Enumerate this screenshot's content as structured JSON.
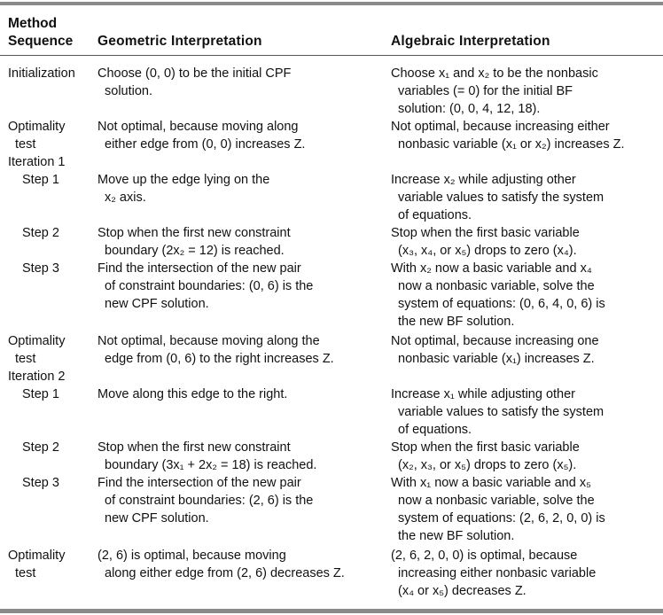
{
  "headers": {
    "method_line1": "Method",
    "method_line2": "Sequence",
    "geometric": "Geometric Interpretation",
    "algebraic": "Algebraic Interpretation"
  },
  "rows": [
    {
      "method": [
        "Initialization"
      ],
      "geometric": [
        "Choose (0, 0) to be the initial CPF",
        "solution."
      ],
      "algebraic": [
        "Choose x₁ and x₂ to be the nonbasic",
        "variables (= 0) for the initial BF",
        "solution: (0, 0, 4, 12, 18)."
      ]
    },
    {
      "method": [
        "Optimality",
        "test"
      ],
      "geometric": [
        "Not optimal, because moving along",
        "either edge from (0, 0) increases Z."
      ],
      "algebraic": [
        "Not optimal, because increasing either",
        "nonbasic variable (x₁ or x₂) increases Z."
      ]
    },
    {
      "method": [
        "Iteration 1"
      ],
      "geometric": [],
      "algebraic": []
    },
    {
      "method": [
        "Step 1"
      ],
      "geometric": [
        "Move up the edge lying on the",
        "x₂ axis."
      ],
      "algebraic": [
        "Increase x₂ while adjusting other",
        "variable values to satisfy the system",
        "of equations."
      ]
    },
    {
      "method": [
        "Step 2"
      ],
      "geometric": [
        "Stop when the first new constraint",
        "boundary (2x₂ = 12) is reached."
      ],
      "algebraic": [
        "Stop when the first basic variable",
        "(x₃, x₄, or x₅) drops to zero (x₄)."
      ]
    },
    {
      "method": [
        "Step 3"
      ],
      "geometric": [
        "Find the intersection of the new pair",
        "of constraint boundaries: (0, 6) is the",
        "new CPF solution."
      ],
      "algebraic": [
        "With x₂ now a basic variable and x₄",
        "now a nonbasic variable, solve the",
        "system of equations: (0, 6, 4, 0, 6) is",
        "the new BF solution."
      ]
    },
    {
      "method": [
        "Optimality",
        "test"
      ],
      "geometric": [
        "Not optimal, because moving along the",
        "edge from (0, 6) to the right increases Z."
      ],
      "algebraic": [
        "Not optimal, because increasing one",
        "nonbasic variable (x₁) increases Z."
      ]
    },
    {
      "method": [
        "Iteration 2"
      ],
      "geometric": [],
      "algebraic": []
    },
    {
      "method": [
        "Step 1"
      ],
      "geometric": [
        "Move along this edge to the right."
      ],
      "algebraic": [
        "Increase x₁ while adjusting other",
        "variable values to satisfy the system",
        "of equations."
      ]
    },
    {
      "method": [
        "Step 2"
      ],
      "geometric": [
        "Stop when the first new constraint",
        "boundary (3x₁ + 2x₂ = 18) is reached."
      ],
      "algebraic": [
        "Stop when the first basic variable",
        "(x₂, x₃, or x₅) drops to zero (x₅)."
      ]
    },
    {
      "method": [
        "Step 3"
      ],
      "geometric": [
        "Find the intersection of the new pair",
        "of constraint boundaries: (2, 6) is the",
        "new CPF solution."
      ],
      "algebraic": [
        "With x₁ now a basic variable and x₅",
        "now a nonbasic variable, solve the",
        "system of equations: (2, 6, 2, 0, 0) is",
        "the new BF solution."
      ]
    },
    {
      "method": [
        "Optimality",
        "test"
      ],
      "geometric": [
        "(2, 6) is optimal, because moving",
        "along either edge from (2, 6) decreases Z."
      ],
      "algebraic": [
        "(2, 6, 2, 0, 0) is optimal, because",
        "increasing either nonbasic variable",
        "(x₄ or x₅) decreases Z."
      ]
    }
  ]
}
